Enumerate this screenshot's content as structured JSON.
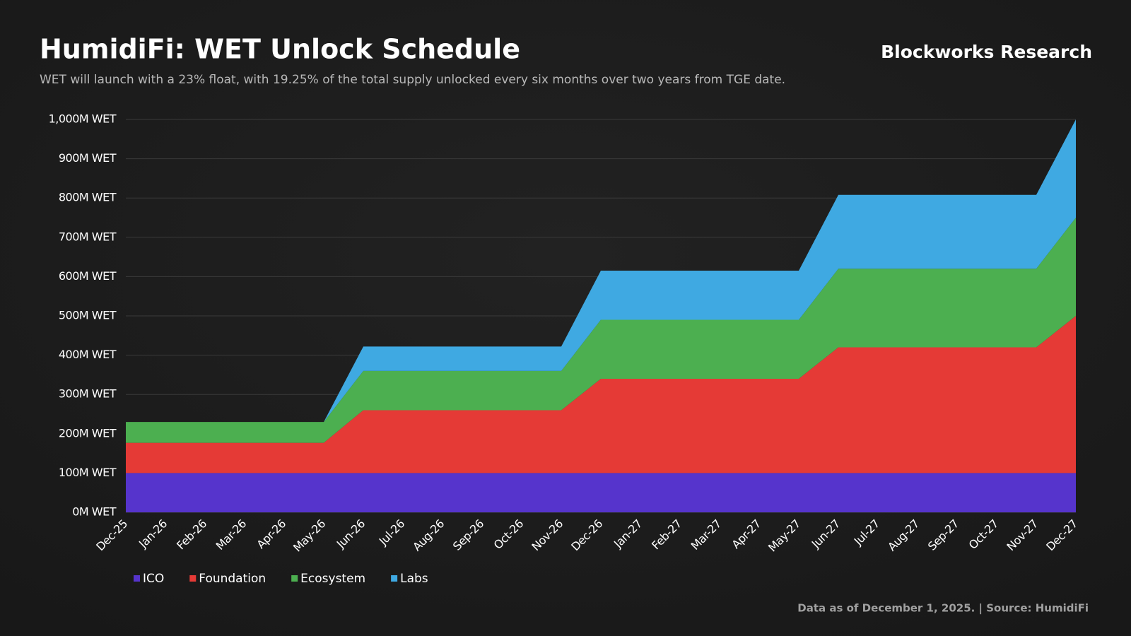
{
  "chart_data": {
    "type": "stacked_area",
    "title": "HumidiFi: WET Unlock Schedule",
    "subtitle": "WET will launch with a 23% float, with 19.25% of the total supply unlocked every six months over two years from TGE date.",
    "brand": "Blockworks Research",
    "footer": "Data as of December 1, 2025. | Source: HumidiFi",
    "categories": [
      "Dec-25",
      "Jan-26",
      "Feb-26",
      "Mar-26",
      "Apr-26",
      "May-26",
      "Jun-26",
      "Jul-26",
      "Aug-26",
      "Sep-26",
      "Oct-26",
      "Nov-26",
      "Dec-26",
      "Jan-27",
      "Feb-27",
      "Mar-27",
      "Apr-27",
      "May-27",
      "Jun-27",
      "Jul-27",
      "Aug-27",
      "Sep-27",
      "Oct-27",
      "Nov-27",
      "Dec-27"
    ],
    "series": [
      {
        "name": "ICO",
        "color": "#5634cc",
        "values": [
          100,
          100,
          100,
          100,
          100,
          100,
          100,
          100,
          100,
          100,
          100,
          100,
          100,
          100,
          100,
          100,
          100,
          100,
          100,
          100,
          100,
          100,
          100,
          100,
          100
        ]
      },
      {
        "name": "Foundation",
        "color": "#e53a36",
        "values": [
          77,
          77,
          77,
          77,
          77,
          77,
          160,
          160,
          160,
          160,
          160,
          160,
          240,
          240,
          240,
          240,
          240,
          240,
          320,
          320,
          320,
          320,
          320,
          320,
          400
        ]
      },
      {
        "name": "Ecosystem",
        "color": "#4caf50",
        "values": [
          53,
          53,
          53,
          53,
          53,
          53,
          100,
          100,
          100,
          100,
          100,
          100,
          150,
          150,
          150,
          150,
          150,
          150,
          200,
          200,
          200,
          200,
          200,
          200,
          250
        ]
      },
      {
        "name": "Labs",
        "color": "#3fa9e2",
        "values": [
          0,
          0,
          0,
          0,
          0,
          0,
          62,
          62,
          62,
          62,
          62,
          62,
          125,
          125,
          125,
          125,
          125,
          125,
          188,
          188,
          188,
          188,
          188,
          188,
          250
        ]
      }
    ],
    "ylim": [
      0,
      1000
    ],
    "yticks": [
      {
        "value": 0,
        "label": "0M WET"
      },
      {
        "value": 100,
        "label": "100M WET"
      },
      {
        "value": 200,
        "label": "200M WET"
      },
      {
        "value": 300,
        "label": "300M WET"
      },
      {
        "value": 400,
        "label": "400M WET"
      },
      {
        "value": 500,
        "label": "500M WET"
      },
      {
        "value": 600,
        "label": "600M WET"
      },
      {
        "value": 700,
        "label": "700M WET"
      },
      {
        "value": 800,
        "label": "800M WET"
      },
      {
        "value": 900,
        "label": "900M WET"
      },
      {
        "value": 1000,
        "label": "1,000M WET"
      }
    ],
    "grid": true
  }
}
